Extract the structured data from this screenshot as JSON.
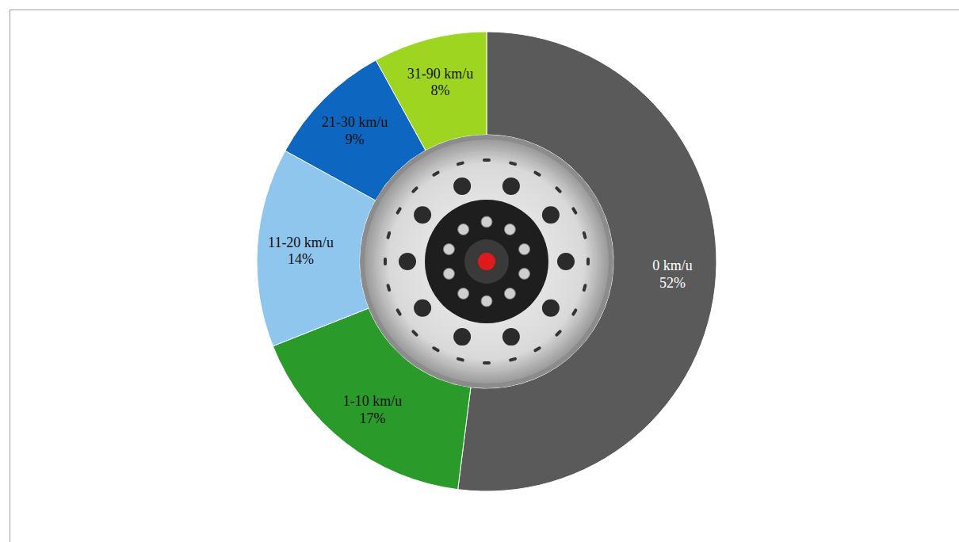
{
  "chart_data": {
    "type": "pie",
    "categories": [
      "0 km/u",
      "1-10 km/u",
      "11-20 km/u",
      "21-30 km/u",
      "31-90 km/u"
    ],
    "values": [
      52,
      17,
      14,
      9,
      8
    ],
    "value_labels": [
      "52%",
      "17%",
      "14%",
      "9%",
      "8%"
    ],
    "colors": [
      "#5a5a5a",
      "#2a9a2a",
      "#8ec6ee",
      "#0d66bf",
      "#9ed520"
    ],
    "data_labels": true
  }
}
